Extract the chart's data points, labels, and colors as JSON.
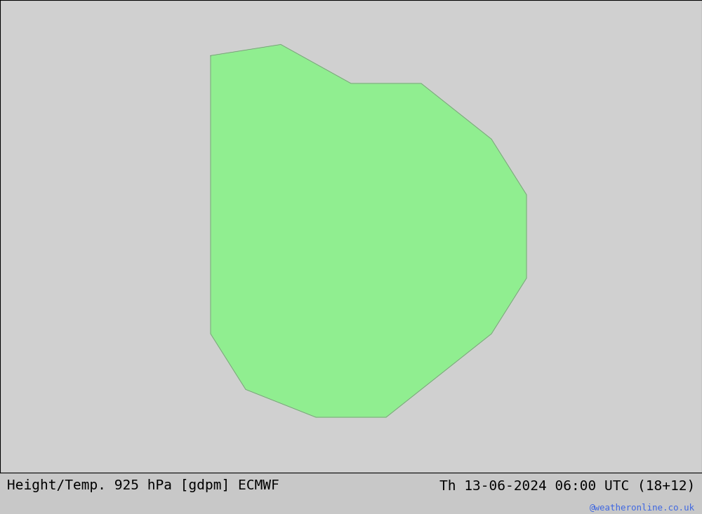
{
  "title_left": "Height/Temp. 925 hPa [gdpm] ECMWF",
  "title_right": "Th 13-06-2024 06:00 UTC (18+12)",
  "watermark": "@weatheronline.co.uk",
  "background_color": "#d0d0d0",
  "land_color": "#90ee90",
  "ocean_color": "#d8d8d8",
  "title_fontsize": 14,
  "watermark_color": "#4169e1",
  "fig_width": 10.0,
  "fig_height": 7.33
}
